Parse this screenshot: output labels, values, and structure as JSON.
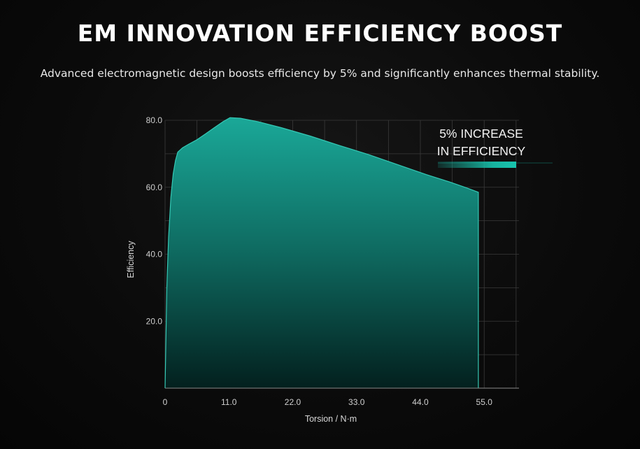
{
  "header": {
    "title": "EM INNOVATION EFFICIENCY BOOST",
    "subtitle": "Advanced electromagnetic design boosts efficiency by 5% and significantly enhances thermal stability."
  },
  "colors": {
    "fill_top": "#1aa898",
    "fill_bottom": "#03201e",
    "edge": "#35c9b5",
    "accent_bar": "#18c4ae",
    "grid": "#3a3a3a"
  },
  "chart_data": {
    "type": "area",
    "xlabel": "Torsion / N·m",
    "ylabel": "Efficiency",
    "xlim": [
      0,
      61
    ],
    "ylim": [
      0,
      80
    ],
    "x_ticks": [
      0,
      11,
      22,
      33,
      44,
      55
    ],
    "x_tick_labels": [
      "0",
      "11.0",
      "22.0",
      "33.0",
      "44.0",
      "55.0"
    ],
    "y_ticks": [
      20,
      40,
      60,
      80
    ],
    "y_tick_labels": [
      "20.0",
      "40.0",
      "60.0",
      "80.0"
    ],
    "grid": true,
    "legend": "none",
    "series": [
      {
        "x": [
          0,
          0.3,
          0.6,
          1.0,
          1.4,
          1.8,
          2.2,
          3,
          4,
          5.5,
          7,
          8.5,
          10,
          11.2,
          13,
          16,
          20,
          25,
          30,
          35,
          40,
          45,
          49,
          52,
          54
        ],
        "values": [
          0,
          30,
          45,
          57,
          64,
          68,
          70.5,
          71.8,
          72.8,
          74.2,
          76,
          77.8,
          79.6,
          80.8,
          80.6,
          79.6,
          77.8,
          75.3,
          72.5,
          69.8,
          66.8,
          63.8,
          61.6,
          59.8,
          58.5
        ]
      }
    ],
    "annotations": [
      {
        "text_lines": [
          "5% INCREASE",
          "IN EFFICIENCY"
        ],
        "position": "top-right"
      }
    ]
  }
}
